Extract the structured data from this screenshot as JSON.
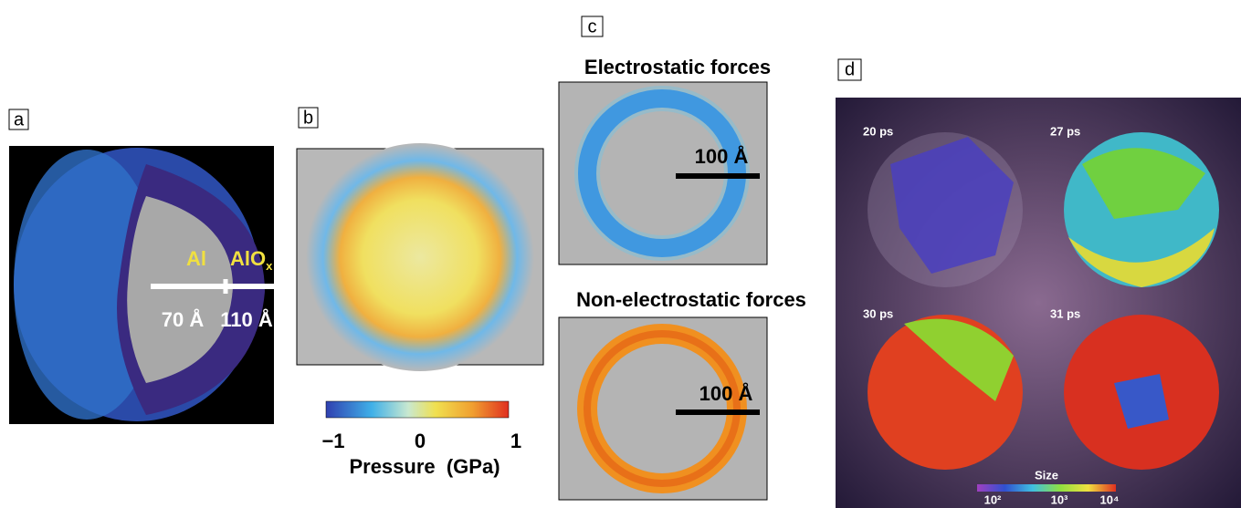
{
  "panels": {
    "a": {
      "label": "a",
      "core": "Al",
      "shell": "AlO",
      "shell_sub": "x",
      "core_radius": "70 Å",
      "shell_radius": "110 Å"
    },
    "b": {
      "label": "b",
      "colorbar_ticks": [
        "−1",
        "0",
        "1"
      ],
      "colorbar_title": "Pressure  (GPa)"
    },
    "c": {
      "label": "c",
      "top_title": "Electrostatic forces",
      "top_scale": "100 Å",
      "bottom_title": "Non-electrostatic forces",
      "bottom_scale": "100 Å"
    },
    "d": {
      "label": "d",
      "times": [
        "20 ps",
        "27 ps",
        "30 ps",
        "31 ps"
      ],
      "colorbar_title": "Size",
      "colorbar_ticks": [
        "10²",
        "10³",
        "10⁴"
      ]
    }
  }
}
